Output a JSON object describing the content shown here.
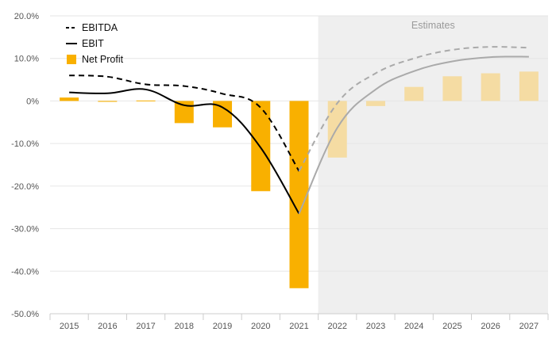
{
  "chart_data": {
    "type": "bar",
    "categories": [
      "2015",
      "2016",
      "2017",
      "2018",
      "2019",
      "2020",
      "2021",
      "2022",
      "2023",
      "2024",
      "2025",
      "2026",
      "2027"
    ],
    "estimates_from": "2022",
    "estimates_label": "Estimates",
    "ylim": [
      -50,
      20
    ],
    "y_ticks": [
      20,
      10,
      0,
      -10,
      -20,
      -30,
      -40,
      -50
    ],
    "y_tick_labels": [
      "20.0%",
      "10.0%",
      "0%",
      "-10.0%",
      "-20.0%",
      "-30.0%",
      "-40.0%",
      "-50.0%"
    ],
    "grid": true,
    "legend_position": "top-left",
    "series": [
      {
        "name": "EBITDA",
        "type": "line",
        "style": "dashed",
        "color": "#000000",
        "estimate_color": "#aaaaaa",
        "values": [
          6.0,
          5.7,
          3.9,
          3.5,
          1.7,
          -1.6,
          -16.5,
          -0.5,
          6.5,
          10.0,
          12.0,
          12.7,
          12.5
        ]
      },
      {
        "name": "EBIT",
        "type": "line",
        "style": "solid",
        "color": "#000000",
        "estimate_color": "#aaaaaa",
        "values": [
          2.0,
          1.8,
          2.7,
          -1.0,
          -1.5,
          -11.0,
          -26.5,
          -6.3,
          2.7,
          7.0,
          9.3,
          10.3,
          10.4
        ]
      },
      {
        "name": "Net Profit",
        "type": "bar",
        "color": "#f9b000",
        "estimate_color": "#f5dca3",
        "values": [
          0.8,
          -0.2,
          0.1,
          -5.2,
          -6.2,
          -21.2,
          -44.0,
          -13.3,
          -1.2,
          3.3,
          5.8,
          6.5,
          6.9
        ]
      }
    ]
  }
}
